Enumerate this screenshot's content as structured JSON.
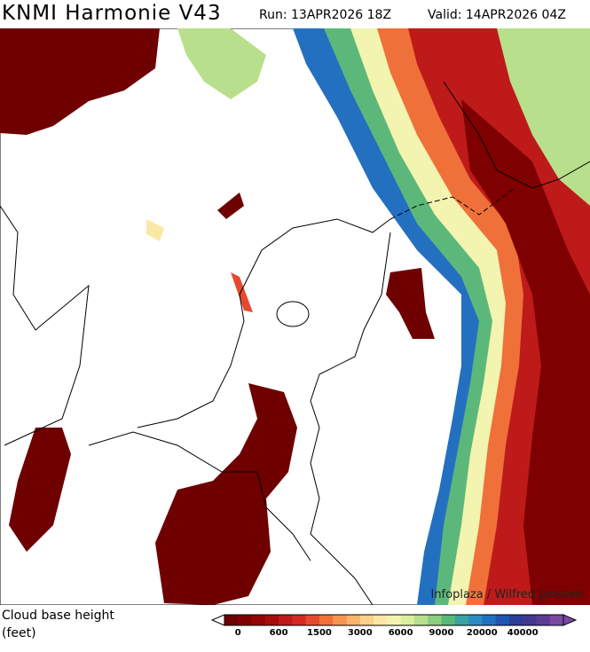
{
  "header": {
    "title": "KNMI Harmonie V43",
    "run": "Run: 13APR2026 18Z",
    "valid": "Valid: 14APR2026 04Z"
  },
  "map": {
    "credit": "Infoplaza / Wilfred Janssen"
  },
  "legend": {
    "label_line1": "Cloud base height",
    "label_line2": "(feet)",
    "ticks": [
      0,
      600,
      1500,
      3000,
      6000,
      9000,
      20000,
      40000
    ],
    "colors": [
      "#6e0000",
      "#7f0000",
      "#930606",
      "#a80d0d",
      "#be1a1a",
      "#d42a24",
      "#e54a2e",
      "#f0703a",
      "#f5944f",
      "#f8b46a",
      "#fbd08a",
      "#fbe8a6",
      "#f2f4b0",
      "#dcef9e",
      "#b8e08c",
      "#8ccd7e",
      "#5cb87a",
      "#38a3a0",
      "#2d8cc2",
      "#2470c0",
      "#1f55b0",
      "#2a3e9a",
      "#43398f",
      "#5c3b94",
      "#7a4aa3"
    ]
  }
}
